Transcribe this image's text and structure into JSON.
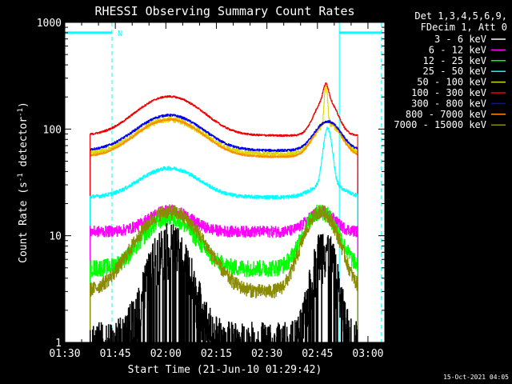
{
  "chart_data": {
    "type": "line",
    "title": "RHESSI Observing Summary Count Rates",
    "xlabel": "Start Time (21-Jun-10 01:29:42)",
    "ylabel_pre": "Count Rate (s",
    "ylabel_sup1": "-1",
    "ylabel_mid": " detector",
    "ylabel_sup2": "-1",
    "ylabel_post": ")",
    "y_scale": "log",
    "ylim": [
      1,
      1000
    ],
    "xlim_minutes": [
      90,
      185
    ],
    "x_ticks": [
      {
        "t": 90,
        "label": "01:30"
      },
      {
        "t": 105,
        "label": "01:45"
      },
      {
        "t": 120,
        "label": "02:00"
      },
      {
        "t": 135,
        "label": "02:15"
      },
      {
        "t": 150,
        "label": "02:30"
      },
      {
        "t": 165,
        "label": "02:45"
      },
      {
        "t": 180,
        "label": "03:00"
      }
    ],
    "y_ticks": [
      {
        "v": 1,
        "label": "1"
      },
      {
        "v": 10,
        "label": "10"
      },
      {
        "v": 100,
        "label": "100"
      },
      {
        "v": 1000,
        "label": "1000"
      }
    ],
    "legend_header": [
      "Det 1,3,4,5,6,9,",
      "FDecim 1, Att 0"
    ],
    "series": [
      {
        "name": "3 - 6 keV",
        "color": "#000000"
      },
      {
        "name": "6 - 12 keV",
        "color": "#ff00ff"
      },
      {
        "name": "12 - 25 keV",
        "color": "#00ff00"
      },
      {
        "name": "25 - 50 keV",
        "color": "#00ffff"
      },
      {
        "name": "50 - 100 keV",
        "color": "#d8d800"
      },
      {
        "name": "100 - 300 keV",
        "color": "#ee0000"
      },
      {
        "name": "300 - 800 keV",
        "color": "#0000ee"
      },
      {
        "name": "800 - 7000 keV",
        "color": "#ff8c00"
      },
      {
        "name": "7000 - 15000 keV",
        "color": "#8b8b00"
      }
    ],
    "night_marker_label": "N",
    "footer_timestamp": "15-Oct-2021 04:05"
  }
}
